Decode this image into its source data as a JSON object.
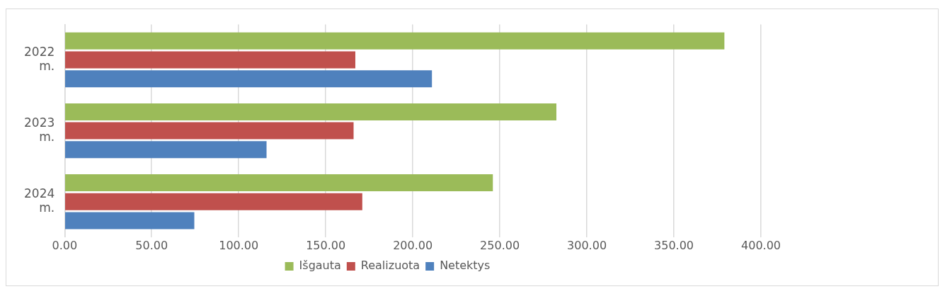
{
  "chart_data": {
    "type": "bar",
    "orientation": "horizontal",
    "categories": [
      "2022 m.",
      "2023 m.",
      "2024 m."
    ],
    "series": [
      {
        "name": "Išgauta",
        "color": "#9bbb59",
        "values": [
          379,
          282.5,
          246
        ]
      },
      {
        "name": "Realizuota",
        "color": "#c0504d",
        "values": [
          167,
          166,
          171
        ]
      },
      {
        "name": "Netektys",
        "color": "#4f81bd",
        "values": [
          211,
          116,
          74.5
        ]
      }
    ],
    "xlim": [
      0,
      400
    ],
    "xticks": [
      {
        "value": 0,
        "label": "0.00"
      },
      {
        "value": 50,
        "label": "50.00"
      },
      {
        "value": 100,
        "label": "100.00"
      },
      {
        "value": 150,
        "label": "150.00"
      },
      {
        "value": 200,
        "label": "200.00"
      },
      {
        "value": 250,
        "label": "250.00"
      },
      {
        "value": 300,
        "label": "300.00"
      },
      {
        "value": 350,
        "label": "350.00"
      },
      {
        "value": 400,
        "label": "400.00"
      }
    ],
    "grid": "x",
    "legend": "bottom"
  }
}
